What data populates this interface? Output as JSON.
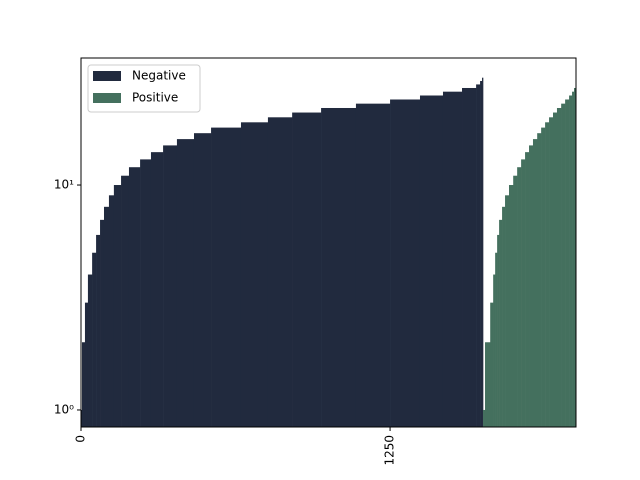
{
  "chart_data": {
    "type": "step-bar",
    "series": [
      {
        "name": "Negative",
        "color": "#212a3e",
        "bins": [
          0,
          4,
          16,
          28,
          45,
          61,
          77,
          93,
          113,
          133,
          162,
          194,
          239,
          283,
          332,
          388,
          457,
          526,
          647,
          756,
          854,
          971,
          1112,
          1250,
          1371,
          1464,
          1541,
          1598,
          1614,
          1622,
          1626
        ],
        "values": [
          1,
          2,
          3,
          4,
          5,
          6,
          7,
          8,
          9,
          10,
          11,
          12,
          13,
          14,
          15,
          16,
          17,
          18,
          19,
          20,
          21,
          22,
          23,
          24,
          25,
          26,
          27,
          28,
          29,
          30
        ]
      },
      {
        "name": "Positive",
        "color": "#44705e",
        "bins": [
          1626,
          1634,
          1655,
          1667,
          1675,
          1683,
          1691,
          1703,
          1715,
          1731,
          1748,
          1764,
          1780,
          1796,
          1812,
          1828,
          1845,
          1861,
          1877,
          1893,
          1909,
          1925,
          1942,
          1958,
          1974,
          1986,
          1994,
          2002
        ],
        "values": [
          1,
          2,
          3,
          4,
          5,
          6,
          7,
          8,
          9,
          10,
          11,
          12,
          13,
          14,
          15,
          16,
          17,
          18,
          19,
          20,
          21,
          22,
          23,
          24,
          25,
          26,
          27
        ]
      }
    ],
    "xlim": [
      0,
      2002
    ],
    "xticks": [
      0,
      1250
    ],
    "ylim": [
      0.84,
      36.7
    ],
    "log_y": true,
    "yticks": [
      {
        "value": 1,
        "label": "10⁰"
      },
      {
        "value": 10,
        "label": "10¹"
      }
    ],
    "legend": "upper left"
  }
}
